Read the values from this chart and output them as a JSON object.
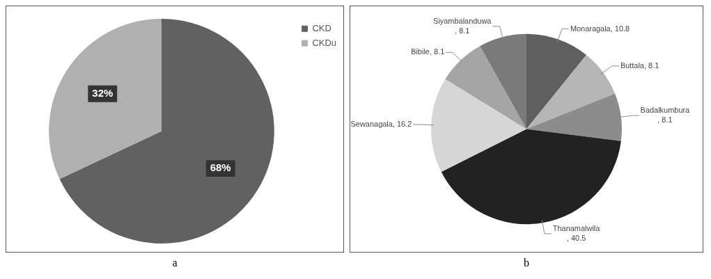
{
  "chart_data": [
    {
      "type": "pie",
      "title": "a",
      "categories": [
        "CKD",
        "CKDu"
      ],
      "values": [
        68,
        32
      ],
      "colors": [
        "#616161",
        "#b0b0b0"
      ],
      "value_labels": [
        "68%",
        "32%"
      ],
      "legend": "top right"
    },
    {
      "type": "pie",
      "title": "b",
      "categories": [
        "Monaragala",
        "Buttala",
        "Badalkumbura",
        "Thanamalwila",
        "Sewanagala",
        "Bibile",
        "Siyambalanduwa"
      ],
      "values": [
        10.8,
        8.1,
        8.1,
        40.5,
        16.2,
        8.1,
        8.1
      ],
      "colors": [
        "#5f5f5f",
        "#b5b5b5",
        "#8c8c8c",
        "#222222",
        "#d6d6d6",
        "#a5a5a5",
        "#7a7a7a"
      ],
      "value_labels": [
        ", 10.8",
        ", 8.1",
        ", 8.1",
        ", 40.5",
        ", 16.2",
        ", 8.1",
        ", 8.1"
      ],
      "legend": false
    }
  ]
}
